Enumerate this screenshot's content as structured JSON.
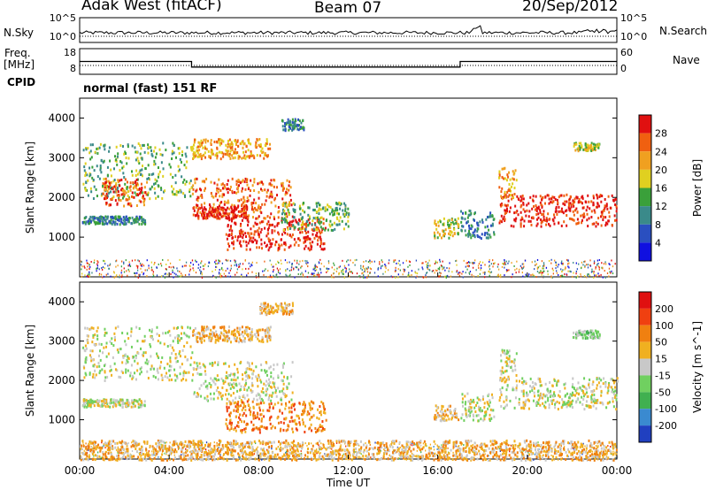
{
  "header": {
    "station": "Adak West (fitACF)",
    "beam": "Beam 07",
    "date": "20/Sep/2012"
  },
  "side_labels": {
    "nsky": "N.Sky",
    "freq": "Freq.",
    "freq_unit": "[MHz]",
    "cpid": "CPID",
    "nsearch": "N.Search",
    "nave": "Nave"
  },
  "mode_text": "normal (fast) 151 RF",
  "colors": {
    "power": [
      "#1010e0",
      "#2a4fc0",
      "#3a8a8a",
      "#3aa03a",
      "#e0d020",
      "#f0a020",
      "#f06010",
      "#e01010"
    ],
    "velocity": [
      "#2040c0",
      "#3a8ad0",
      "#40b050",
      "#70d060",
      "#c8c8c8",
      "#f0b020",
      "#f08010",
      "#f04010",
      "#e01010"
    ]
  },
  "chart_data": [
    {
      "type": "line",
      "name": "noise-panel",
      "left_ticks": [
        "10^5",
        "10^0"
      ],
      "right_ticks": [
        "10^5",
        "10^0"
      ]
    },
    {
      "type": "line",
      "name": "frequency-panel",
      "left_ticks": [
        "18",
        "8"
      ],
      "right_ticks": [
        "60",
        "0"
      ],
      "frequency_steps": [
        {
          "start_ut": 0,
          "end_ut": 5,
          "value": 13
        },
        {
          "start_ut": 5,
          "end_ut": 17,
          "value": 10
        },
        {
          "start_ut": 17,
          "end_ut": 24,
          "value": 13
        }
      ]
    },
    {
      "type": "heatmap",
      "name": "power-panel",
      "ylabel": "Slant Range [km]",
      "yticks": [
        "4000",
        "3000",
        "2000",
        "1000"
      ],
      "ytick_values": [
        4000,
        3000,
        2000,
        1000
      ],
      "ylim": [
        0,
        4500
      ],
      "xlim": [
        0,
        24
      ],
      "colorbar_label": "Power [dB]",
      "colorbar_ticks": [
        "28",
        "24",
        "20",
        "16",
        "12",
        "8",
        "4"
      ],
      "colorbar_range": [
        0,
        32
      ],
      "bands": [
        {
          "t0": 0.1,
          "t1": 2.9,
          "r0": 1350,
          "r1": 1550,
          "level": 2
        },
        {
          "t0": 0.1,
          "t1": 5.0,
          "r0": 2000,
          "r1": 3400,
          "level": 3
        },
        {
          "t0": 1.0,
          "t1": 3.0,
          "r0": 1800,
          "r1": 2500,
          "level": 6
        },
        {
          "t0": 5.0,
          "t1": 9.5,
          "r0": 1500,
          "r1": 2500,
          "level": 6
        },
        {
          "t0": 5.0,
          "t1": 7.5,
          "r0": 1500,
          "r1": 1800,
          "level": 7
        },
        {
          "t0": 5.0,
          "t1": 8.5,
          "r0": 3000,
          "r1": 3500,
          "level": 5
        },
        {
          "t0": 6.5,
          "t1": 11.0,
          "r0": 700,
          "r1": 1500,
          "level": 7
        },
        {
          "t0": 9.0,
          "t1": 12.0,
          "r0": 1200,
          "r1": 1900,
          "level": 3
        },
        {
          "t0": 9.0,
          "t1": 10.0,
          "r0": 3700,
          "r1": 4000,
          "level": 2
        },
        {
          "t0": 15.8,
          "t1": 16.9,
          "r0": 1000,
          "r1": 1500,
          "level": 4
        },
        {
          "t0": 17.0,
          "t1": 18.5,
          "r0": 1000,
          "r1": 1700,
          "level": 2
        },
        {
          "t0": 18.7,
          "t1": 24.0,
          "r0": 1300,
          "r1": 2100,
          "level": 7
        },
        {
          "t0": 18.7,
          "t1": 19.5,
          "r0": 2000,
          "r1": 2800,
          "level": 5
        },
        {
          "t0": 22.0,
          "t1": 23.2,
          "r0": 3200,
          "r1": 3400,
          "level": 4
        }
      ]
    },
    {
      "type": "heatmap",
      "name": "velocity-panel",
      "ylabel": "Slant Range [km]",
      "xlabel": "Time UT",
      "yticks": [
        "4000",
        "3000",
        "2000",
        "1000"
      ],
      "ytick_values": [
        4000,
        3000,
        2000,
        1000
      ],
      "ylim": [
        0,
        4500
      ],
      "xlim": [
        0,
        24
      ],
      "xticks": [
        "00:00",
        "04:00",
        "08:00",
        "12:00",
        "16:00",
        "20:00",
        "00:00"
      ],
      "xtick_values": [
        0,
        4,
        8,
        12,
        16,
        20,
        24
      ],
      "colorbar_label": "Velocity [m s^-1]",
      "colorbar_ticks": [
        "200",
        "100",
        "50",
        "15",
        "-15",
        "-50",
        "-100",
        "-200"
      ],
      "bands": [
        {
          "t0": 0.1,
          "t1": 2.9,
          "r0": 1350,
          "r1": 1550,
          "level": 4
        },
        {
          "t0": 0.1,
          "t1": 5.0,
          "r0": 2000,
          "r1": 3400,
          "level": 4
        },
        {
          "t0": 5.0,
          "t1": 9.5,
          "r0": 1500,
          "r1": 2500,
          "level": 4
        },
        {
          "t0": 5.0,
          "t1": 8.5,
          "r0": 3000,
          "r1": 3400,
          "level": 5
        },
        {
          "t0": 6.5,
          "t1": 11.0,
          "r0": 700,
          "r1": 1500,
          "level": 6
        },
        {
          "t0": 8.0,
          "t1": 9.5,
          "r0": 3700,
          "r1": 4000,
          "level": 5
        },
        {
          "t0": 15.8,
          "t1": 16.9,
          "r0": 1000,
          "r1": 1400,
          "level": 5
        },
        {
          "t0": 17.0,
          "t1": 18.5,
          "r0": 1000,
          "r1": 1700,
          "level": 4
        },
        {
          "t0": 18.7,
          "t1": 24.0,
          "r0": 1300,
          "r1": 2100,
          "level": 4
        },
        {
          "t0": 18.7,
          "t1": 19.5,
          "r0": 2000,
          "r1": 2800,
          "level": 4
        },
        {
          "t0": 22.0,
          "t1": 23.2,
          "r0": 3100,
          "r1": 3300,
          "level": 3
        },
        {
          "t0": 0.0,
          "t1": 24.0,
          "r0": 0,
          "r1": 500,
          "level": 5
        }
      ]
    }
  ]
}
